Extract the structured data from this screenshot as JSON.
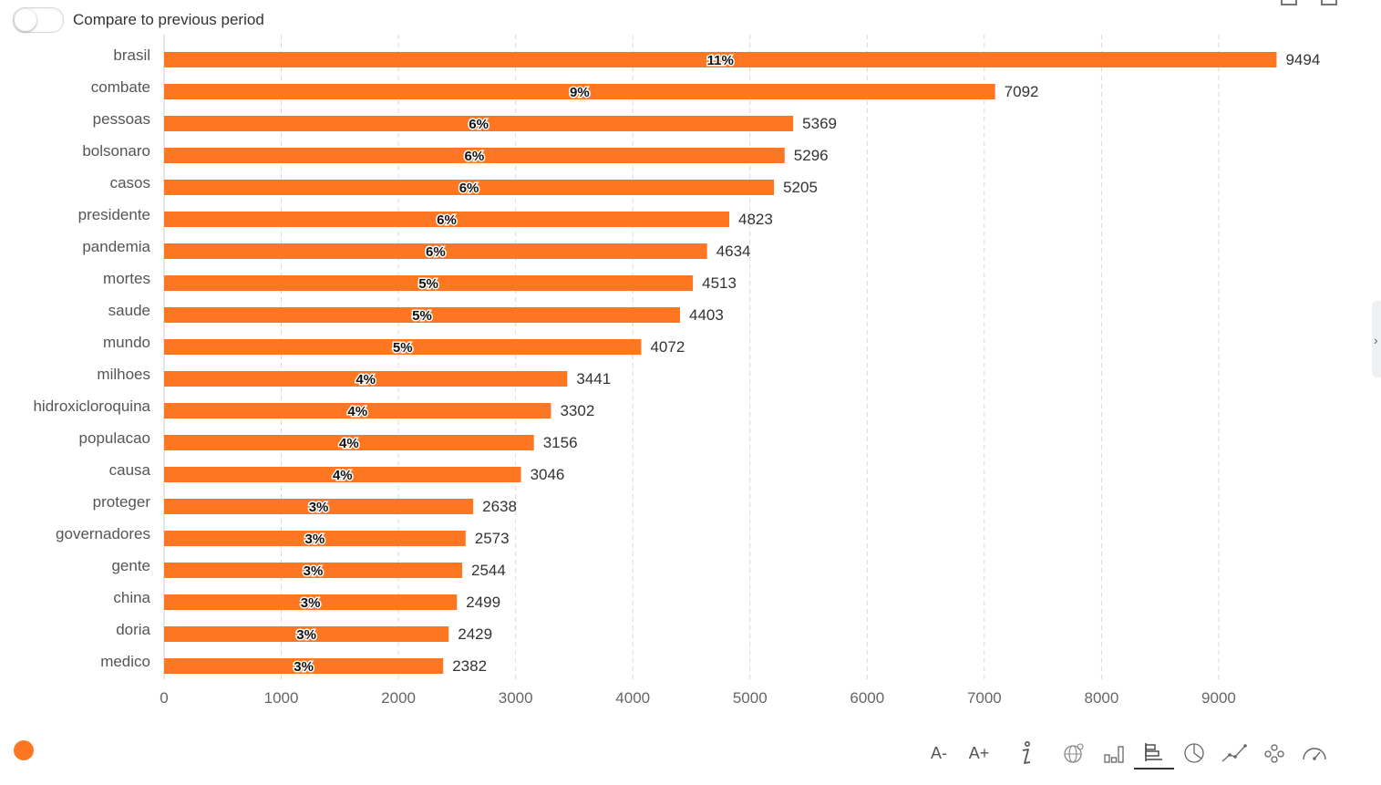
{
  "toggle": {
    "label": "Compare to previous period",
    "on": false
  },
  "toolbar": {
    "font_decrease": "A-",
    "font_increase": "A+"
  },
  "icons": [
    "info-icon",
    "globe-chart-icon",
    "column-chart-icon",
    "bar-chart-icon",
    "pie-chart-icon",
    "line-chart-icon",
    "network-chart-icon",
    "gauge-chart-icon"
  ],
  "colors": {
    "bar": "#fd7622",
    "legend_dot": "#fd7622",
    "grid": "#d9d9d9"
  },
  "chart_data": {
    "type": "bar",
    "orientation": "horizontal",
    "categories": [
      "brasil",
      "combate",
      "pessoas",
      "bolsonaro",
      "casos",
      "presidente",
      "pandemia",
      "mortes",
      "saude",
      "mundo",
      "milhoes",
      "hidroxicloroquina",
      "populacao",
      "causa",
      "proteger",
      "governadores",
      "gente",
      "china",
      "doria",
      "medico"
    ],
    "values": [
      9494,
      7092,
      5369,
      5296,
      5205,
      4823,
      4634,
      4513,
      4403,
      4072,
      3441,
      3302,
      3156,
      3046,
      2638,
      2573,
      2544,
      2499,
      2429,
      2382
    ],
    "percent_labels": [
      "11%",
      "9%",
      "6%",
      "6%",
      "6%",
      "6%",
      "6%",
      "5%",
      "5%",
      "5%",
      "4%",
      "4%",
      "4%",
      "4%",
      "3%",
      "3%",
      "3%",
      "3%",
      "3%",
      "3%"
    ],
    "xlim": [
      0,
      9494
    ],
    "xticks": [
      0,
      1000,
      2000,
      3000,
      4000,
      5000,
      6000,
      7000,
      8000,
      9000
    ],
    "grid": true,
    "legend": "bottom-left"
  }
}
